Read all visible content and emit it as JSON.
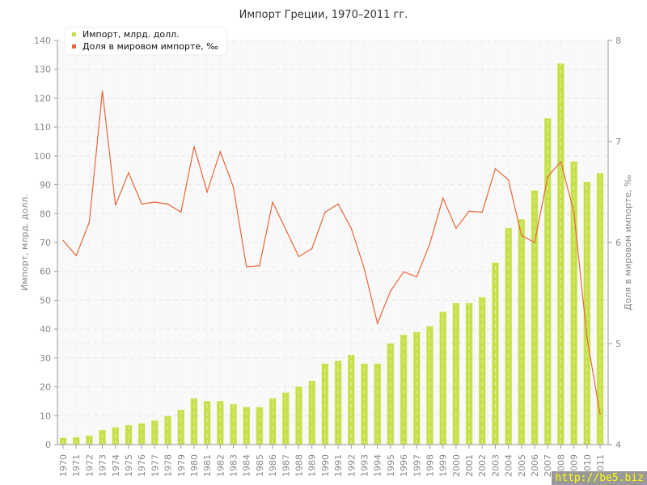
{
  "chart_data": {
    "type": "bar+line",
    "title": "Импорт Греции, 1970–2011 гг.",
    "ylabel": "Импорт, млрд. долл.",
    "y2label": "Доля в мировом импорте, ‰",
    "ylim": [
      0,
      140
    ],
    "y2lim": [
      4,
      8
    ],
    "yticks": [
      0,
      10,
      20,
      30,
      40,
      50,
      60,
      70,
      80,
      90,
      100,
      110,
      120,
      130,
      140
    ],
    "y2ticks": [
      4,
      5,
      6,
      7,
      8
    ],
    "grid": true,
    "legend_position": "top-left",
    "categories": [
      "1970",
      "1971",
      "1972",
      "1973",
      "1974",
      "1975",
      "1976",
      "1977",
      "1978",
      "1979",
      "1980",
      "1981",
      "1982",
      "1983",
      "1984",
      "1985",
      "1986",
      "1987",
      "1988",
      "1989",
      "1990",
      "1991",
      "1992",
      "1993",
      "1994",
      "1995",
      "1996",
      "1997",
      "1998",
      "1999",
      "2000",
      "2001",
      "2002",
      "2003",
      "2004",
      "2005",
      "2006",
      "2007",
      "2008",
      "2009",
      "2010",
      "2011"
    ],
    "series": [
      {
        "name": "Импорт, млрд. долл.",
        "type": "bar",
        "axis": "left",
        "color": "#c5e04a",
        "values": [
          2.3,
          2.5,
          3.1,
          5.0,
          6.0,
          6.7,
          7.3,
          8.3,
          9.8,
          12,
          16,
          15,
          15,
          14,
          13,
          13,
          16,
          18,
          20,
          22,
          28,
          29,
          31,
          28,
          28,
          35,
          38,
          39,
          41,
          46,
          49,
          49,
          51,
          63,
          75,
          78,
          88,
          113,
          132,
          98,
          91,
          94
        ]
      },
      {
        "name": "Доля в мировом импорте, ‰",
        "type": "line",
        "axis": "right",
        "color": "#e8663a",
        "values": [
          6.02,
          5.87,
          6.2,
          7.5,
          6.37,
          6.69,
          6.38,
          6.4,
          6.38,
          6.3,
          6.95,
          6.5,
          6.9,
          6.55,
          5.76,
          5.77,
          6.4,
          6.13,
          5.86,
          5.94,
          6.3,
          6.38,
          6.14,
          5.74,
          5.2,
          5.52,
          5.71,
          5.66,
          5.99,
          6.44,
          6.14,
          6.31,
          6.3,
          6.73,
          6.62,
          6.07,
          6.0,
          6.65,
          6.8,
          6.3,
          5.06,
          4.3
        ]
      }
    ]
  },
  "watermark": "http://be5.biz"
}
